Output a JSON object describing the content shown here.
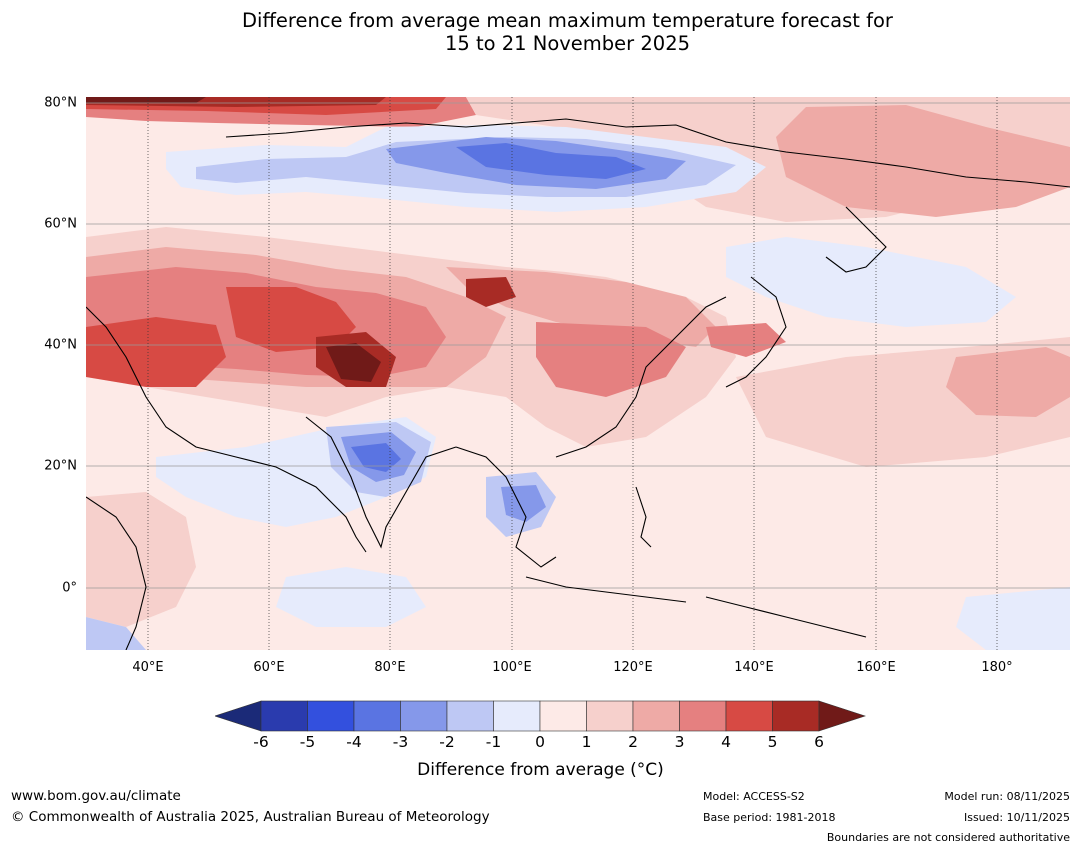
{
  "title": {
    "line1": "Difference from average mean maximum temperature forecast for",
    "line2": "15 to 21 November 2025"
  },
  "map": {
    "lat_labels": [
      "80°N",
      "60°N",
      "40°N",
      "20°N",
      "0°"
    ],
    "lon_labels": [
      "40°E",
      "60°E",
      "80°E",
      "100°E",
      "120°E",
      "140°E",
      "160°E",
      "180°"
    ]
  },
  "colorbar": {
    "ticks": [
      "-6",
      "-5",
      "-4",
      "-3",
      "-2",
      "-1",
      "0",
      "1",
      "2",
      "3",
      "4",
      "5",
      "6"
    ],
    "colors": [
      "#1b2a78",
      "#2a3bae",
      "#3350de",
      "#5a74e2",
      "#8598ea",
      "#bec8f4",
      "#e6ebfc",
      "#fdeae7",
      "#f6d0cc",
      "#eeaaa6",
      "#e58080",
      "#d74a44",
      "#a82b25",
      "#701a18"
    ],
    "label": "Difference from average ($^\\circ$C)",
    "label_text": "Difference from average (°C)"
  },
  "footer": {
    "website": "www.bom.gov.au/climate",
    "copyright": "© Commonwealth of Australia 2025, Australian Bureau of Meteorology",
    "model": "Model: ACCESS-S2",
    "base_period": "Base period: 1981-2018",
    "model_run": "Model run: 08/11/2025",
    "issued": "Issued: 10/11/2025",
    "disclaimer": "Boundaries are not considered authoritative"
  }
}
